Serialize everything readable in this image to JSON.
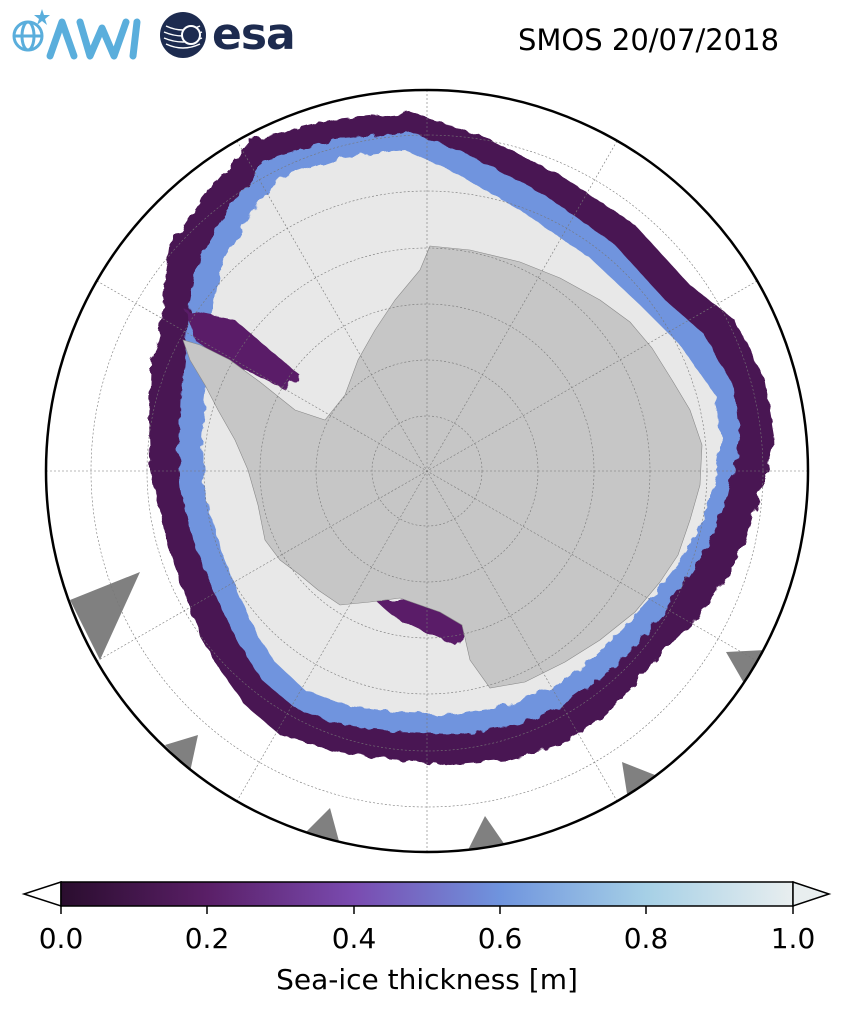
{
  "header": {
    "title": "SMOS 20/07/2018",
    "logos": {
      "awi": "AWI",
      "esa": "esa"
    }
  },
  "colorbar": {
    "label": "Sea-ice thickness [m]",
    "ticks": [
      "0.0",
      "0.2",
      "0.4",
      "0.6",
      "0.8",
      "1.0"
    ],
    "tick_values": [
      0.0,
      0.2,
      0.4,
      0.6,
      0.8,
      1.0
    ],
    "range": [
      0.0,
      1.0
    ],
    "extend": "both",
    "colormap": [
      "#2a0d2e",
      "#5a1f67",
      "#7a4bb0",
      "#6f94de",
      "#a6d0e6",
      "#e8eeef"
    ]
  },
  "map": {
    "projection": "south-polar-stereographic",
    "colors": {
      "land": "#c6c6c6",
      "open_ocean": "#ffffff",
      "thick_ice": "#e8e8e8",
      "no_data": "#808080",
      "ice_edge": "#5a1f67",
      "mid_ice": "#6f94de"
    }
  }
}
